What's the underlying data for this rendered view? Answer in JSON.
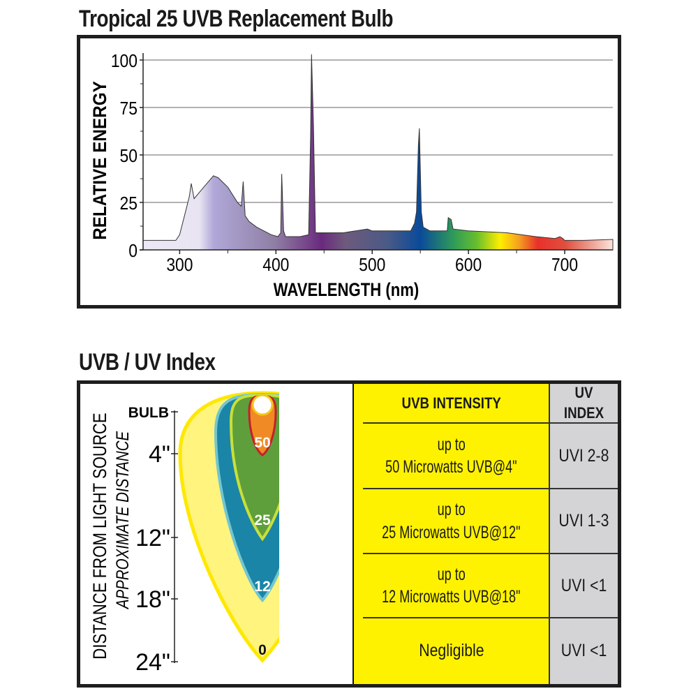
{
  "spectrum": {
    "title": "Tropical 25 UVB Replacement Bulb"
  },
  "chart_data": {
    "type": "area",
    "title": "Tropical 25 UVB Replacement Bulb",
    "xlabel": "WAVELENGTH (nm)",
    "ylabel": "RELATIVE ENERGY",
    "xlim": [
      262,
      750
    ],
    "ylim": [
      0,
      105
    ],
    "xticks": [
      300,
      400,
      500,
      600,
      700
    ],
    "xticks_minor": [
      350,
      450,
      550,
      650
    ],
    "yticks": [
      0,
      25,
      50,
      75,
      100
    ],
    "grid": true,
    "fill": "visible-spectrum gradient",
    "x": [
      262,
      296,
      300,
      306,
      310,
      312,
      315,
      325,
      335,
      340,
      350,
      360,
      364,
      366,
      368,
      372,
      380,
      395,
      402,
      405,
      406,
      408,
      410,
      425,
      434,
      436,
      437,
      439,
      441,
      470,
      495,
      500,
      520,
      540,
      544,
      546,
      548,
      549,
      551,
      553,
      560,
      578,
      579,
      582,
      584,
      600,
      640,
      670,
      690,
      695,
      698,
      700,
      720,
      750
    ],
    "y": [
      5,
      5,
      8,
      20,
      28,
      35,
      27,
      33,
      39,
      38,
      33,
      25,
      23,
      36,
      18,
      15,
      12,
      8,
      7,
      9,
      40,
      10,
      7,
      7,
      8,
      60,
      103,
      65,
      9,
      9,
      11,
      10,
      10,
      10,
      14,
      20,
      55,
      64,
      20,
      12,
      10,
      10,
      17,
      16,
      11,
      10,
      9,
      7,
      6,
      7,
      6,
      5,
      5,
      5.5
    ]
  },
  "uv": {
    "title": "UVB / UV Index",
    "axis_label": "DISTANCE FROM LIGHT SOURCE",
    "axis_sublabel": "APPROXIMATE DISTANCE",
    "ticks": [
      "BULB",
      "4\"",
      "12\"",
      "18\"",
      "24\""
    ],
    "zones": [
      "50",
      "25",
      "12",
      "0"
    ],
    "zone_colors": {
      "50": "#f08a24",
      "25": "#5e9f3c",
      "12": "#1a85a7",
      "0": "#fff47d"
    },
    "table": {
      "headers": [
        "UVB INTENSITY",
        "UV INDEX"
      ],
      "rows": [
        {
          "intensity_line1": "up to",
          "intensity_line2": "50 Microwatts UVB@4\"",
          "index": "UVI 2-8"
        },
        {
          "intensity_line1": "up to",
          "intensity_line2": "25 Microwatts UVB@12\"",
          "index": "UVI 1-3"
        },
        {
          "intensity_line1": "up to",
          "intensity_line2": "12 Microwatts UVB@18\"",
          "index": "UVI <1"
        },
        {
          "intensity_line1": "Negligible",
          "intensity_line2": "",
          "index": "UVI <1"
        }
      ]
    }
  }
}
